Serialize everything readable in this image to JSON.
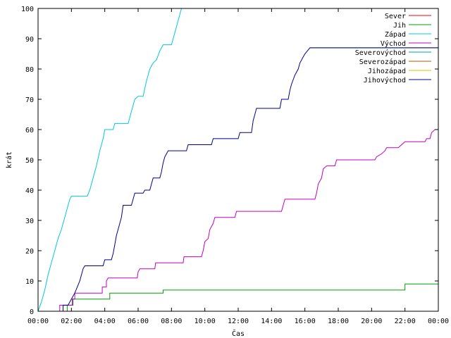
{
  "chart_data": {
    "type": "line",
    "title": "",
    "xlabel": "Čas",
    "ylabel": "krát",
    "xlim": [
      0,
      24
    ],
    "ylim": [
      0,
      100
    ],
    "x_ticks": [
      "00:00",
      "02:00",
      "04:00",
      "06:00",
      "08:00",
      "10:00",
      "12:00",
      "14:00",
      "16:00",
      "18:00",
      "20:00",
      "22:00",
      "00:00"
    ],
    "y_ticks": [
      "0",
      "10",
      "20",
      "30",
      "40",
      "50",
      "60",
      "70",
      "80",
      "90",
      "100"
    ],
    "grid": false,
    "legend_position": "top-right",
    "series": [
      {
        "name": "Sever",
        "color": "#ff0000",
        "points": []
      },
      {
        "name": "Jih",
        "color": "#00a000",
        "points": [
          [
            1.75,
            0
          ],
          [
            1.75,
            2
          ],
          [
            2.1,
            2
          ],
          [
            2.1,
            4
          ],
          [
            4.3,
            4
          ],
          [
            4.3,
            6
          ],
          [
            7.5,
            6
          ],
          [
            7.5,
            7
          ],
          [
            22,
            7
          ],
          [
            22,
            9
          ],
          [
            24,
            9
          ]
        ]
      },
      {
        "name": "Západ",
        "color": "#00c8d8",
        "points": [
          [
            0,
            0
          ],
          [
            0.2,
            3
          ],
          [
            0.4,
            7
          ],
          [
            0.6,
            12
          ],
          [
            0.8,
            16
          ],
          [
            1.0,
            20
          ],
          [
            1.2,
            24
          ],
          [
            1.4,
            27
          ],
          [
            1.6,
            31
          ],
          [
            1.8,
            35
          ],
          [
            1.9,
            37
          ],
          [
            2.0,
            38
          ],
          [
            2.95,
            38
          ],
          [
            3.1,
            40
          ],
          [
            3.3,
            44
          ],
          [
            3.5,
            48
          ],
          [
            3.7,
            53
          ],
          [
            3.9,
            57
          ],
          [
            4.0,
            60
          ],
          [
            4.5,
            60
          ],
          [
            4.6,
            62
          ],
          [
            5.4,
            62
          ],
          [
            5.6,
            66
          ],
          [
            5.8,
            70
          ],
          [
            6.0,
            71
          ],
          [
            6.3,
            71
          ],
          [
            6.5,
            76
          ],
          [
            6.7,
            80
          ],
          [
            6.9,
            82
          ],
          [
            7.1,
            83
          ],
          [
            7.3,
            86
          ],
          [
            7.5,
            88
          ],
          [
            8.0,
            88
          ],
          [
            8.2,
            92
          ],
          [
            8.4,
            96
          ],
          [
            8.6,
            100
          ]
        ]
      },
      {
        "name": "Východ",
        "color": "#c000c0",
        "points": [
          [
            1.3,
            0
          ],
          [
            1.3,
            2
          ],
          [
            2.05,
            2
          ],
          [
            2.05,
            4
          ],
          [
            2.2,
            4
          ],
          [
            2.2,
            6
          ],
          [
            3.85,
            6
          ],
          [
            3.85,
            8
          ],
          [
            4.1,
            8
          ],
          [
            4.1,
            10
          ],
          [
            4.2,
            11
          ],
          [
            5.95,
            11
          ],
          [
            6.0,
            13
          ],
          [
            6.1,
            14
          ],
          [
            7.0,
            14
          ],
          [
            7.05,
            16
          ],
          [
            8.7,
            16
          ],
          [
            8.75,
            18
          ],
          [
            9.8,
            18
          ],
          [
            9.9,
            20
          ],
          [
            10.0,
            23
          ],
          [
            10.2,
            24
          ],
          [
            10.3,
            27
          ],
          [
            10.5,
            29
          ],
          [
            10.6,
            31
          ],
          [
            11.8,
            31
          ],
          [
            11.9,
            33
          ],
          [
            14.6,
            33
          ],
          [
            14.7,
            35
          ],
          [
            14.8,
            37
          ],
          [
            16.6,
            37
          ],
          [
            16.7,
            39
          ],
          [
            16.8,
            42
          ],
          [
            17.0,
            44
          ],
          [
            17.1,
            47
          ],
          [
            17.3,
            48
          ],
          [
            17.8,
            48
          ],
          [
            17.9,
            50
          ],
          [
            20.2,
            50
          ],
          [
            20.3,
            51
          ],
          [
            20.6,
            52
          ],
          [
            20.8,
            53
          ],
          [
            20.9,
            54
          ],
          [
            21.6,
            54
          ],
          [
            21.8,
            55
          ],
          [
            22.0,
            56
          ],
          [
            23.2,
            56
          ],
          [
            23.3,
            57
          ],
          [
            23.5,
            57
          ],
          [
            23.6,
            59
          ],
          [
            23.8,
            60
          ],
          [
            24.0,
            60
          ]
        ]
      },
      {
        "name": "Severovýchod",
        "color": "#00a0a0",
        "points": [
          [
            16.3,
            87
          ],
          [
            24,
            87
          ]
        ]
      },
      {
        "name": "Severozápad",
        "color": "#a06000",
        "points": []
      },
      {
        "name": "Jihozápad",
        "color": "#e0c000",
        "points": []
      },
      {
        "name": "Jihovýchod",
        "color": "#000090",
        "points": [
          [
            1.5,
            0
          ],
          [
            1.5,
            2
          ],
          [
            1.8,
            2
          ],
          [
            2.0,
            4
          ],
          [
            2.2,
            6
          ],
          [
            2.5,
            10
          ],
          [
            2.7,
            14
          ],
          [
            2.8,
            15
          ],
          [
            3.9,
            15
          ],
          [
            4.0,
            17
          ],
          [
            4.4,
            17
          ],
          [
            4.5,
            19
          ],
          [
            4.6,
            22
          ],
          [
            4.7,
            25
          ],
          [
            4.8,
            27
          ],
          [
            5.0,
            31
          ],
          [
            5.1,
            35
          ],
          [
            5.6,
            35
          ],
          [
            5.7,
            37
          ],
          [
            5.8,
            39
          ],
          [
            6.3,
            39
          ],
          [
            6.4,
            40
          ],
          [
            6.7,
            40
          ],
          [
            6.8,
            42
          ],
          [
            6.9,
            44
          ],
          [
            7.3,
            44
          ],
          [
            7.4,
            46
          ],
          [
            7.5,
            49
          ],
          [
            7.6,
            51
          ],
          [
            7.8,
            53
          ],
          [
            8.9,
            53
          ],
          [
            9.0,
            55
          ],
          [
            10.4,
            55
          ],
          [
            10.5,
            57
          ],
          [
            12.0,
            57
          ],
          [
            12.1,
            59
          ],
          [
            12.8,
            59
          ],
          [
            12.9,
            63
          ],
          [
            13.0,
            65
          ],
          [
            13.1,
            67
          ],
          [
            14.5,
            67
          ],
          [
            14.6,
            70
          ],
          [
            15.0,
            70
          ],
          [
            15.1,
            73
          ],
          [
            15.2,
            75
          ],
          [
            15.4,
            78
          ],
          [
            15.6,
            80
          ],
          [
            15.7,
            82
          ],
          [
            15.9,
            84
          ],
          [
            16.0,
            85
          ],
          [
            16.3,
            87
          ],
          [
            24,
            87
          ]
        ]
      }
    ]
  }
}
